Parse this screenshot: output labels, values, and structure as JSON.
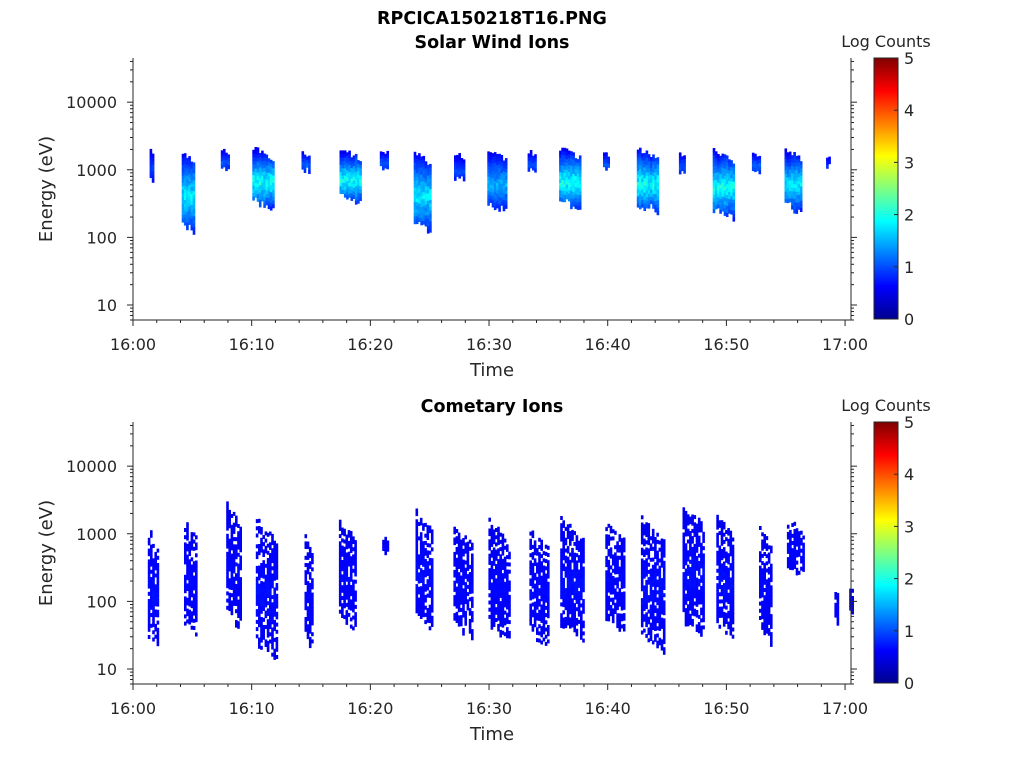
{
  "figure": {
    "filename": "RPCICA150218T16.PNG"
  },
  "chart_data": [
    {
      "type": "heatmap",
      "title": "Solar Wind Ions",
      "xlabel": "Time",
      "ylabel": "Energy (eV)",
      "y_scale": "log",
      "ylim": [
        6,
        45000
      ],
      "x_ticks": [
        "16:00",
        "16:10",
        "16:20",
        "16:30",
        "16:40",
        "16:50",
        "17:00"
      ],
      "xlim_minutes": [
        0,
        60.5
      ],
      "y_ticks": [
        {
          "value": 10,
          "label": "10"
        },
        {
          "value": 100,
          "label": "100"
        },
        {
          "value": 1000,
          "label": "1000"
        },
        {
          "value": 10000,
          "label": "10000"
        }
      ],
      "colorbar": {
        "label": "Log Counts",
        "min": 0,
        "max": 5,
        "ticks": [
          "0",
          "1",
          "2",
          "3",
          "4",
          "5"
        ],
        "colormap": "jet"
      },
      "grid": false,
      "bursts": [
        {
          "t": 1.6,
          "w": 0.4,
          "emin": 700,
          "emax": 2100,
          "peak": 0.6
        },
        {
          "t": 4.7,
          "w": 1.2,
          "emin": 120,
          "emax": 1900,
          "peak": 1.7
        },
        {
          "t": 7.8,
          "w": 0.8,
          "emin": 1100,
          "emax": 2000,
          "peak": 0.7
        },
        {
          "t": 11.0,
          "w": 1.9,
          "emin": 280,
          "emax": 2100,
          "peak": 1.9
        },
        {
          "t": 14.6,
          "w": 0.8,
          "emin": 1050,
          "emax": 1800,
          "peak": 0.8
        },
        {
          "t": 18.3,
          "w": 1.8,
          "emin": 330,
          "emax": 2000,
          "peak": 1.9
        },
        {
          "t": 21.2,
          "w": 0.8,
          "emin": 1100,
          "emax": 1900,
          "peak": 0.7
        },
        {
          "t": 24.4,
          "w": 1.5,
          "emin": 120,
          "emax": 1900,
          "peak": 1.7
        },
        {
          "t": 27.5,
          "w": 0.9,
          "emin": 700,
          "emax": 1800,
          "peak": 0.7
        },
        {
          "t": 30.7,
          "w": 1.7,
          "emin": 250,
          "emax": 2000,
          "peak": 1.3
        },
        {
          "t": 33.6,
          "w": 0.7,
          "emin": 1000,
          "emax": 1900,
          "peak": 0.7
        },
        {
          "t": 36.8,
          "w": 1.8,
          "emin": 280,
          "emax": 2100,
          "peak": 1.9
        },
        {
          "t": 39.9,
          "w": 0.6,
          "emin": 1000,
          "emax": 1900,
          "peak": 0.7
        },
        {
          "t": 43.4,
          "w": 1.9,
          "emin": 250,
          "emax": 2100,
          "peak": 1.9
        },
        {
          "t": 46.3,
          "w": 0.6,
          "emin": 1000,
          "emax": 1700,
          "peak": 0.7
        },
        {
          "t": 49.8,
          "w": 1.9,
          "emin": 210,
          "emax": 2000,
          "peak": 1.9
        },
        {
          "t": 52.5,
          "w": 0.7,
          "emin": 1000,
          "emax": 1800,
          "peak": 0.8
        },
        {
          "t": 55.6,
          "w": 1.4,
          "emin": 240,
          "emax": 2100,
          "peak": 1.7
        },
        {
          "t": 58.6,
          "w": 0.4,
          "emin": 1100,
          "emax": 1500,
          "peak": 0.5
        }
      ]
    },
    {
      "type": "heatmap",
      "title": "Cometary Ions",
      "xlabel": "Time",
      "ylabel": "Energy (eV)",
      "y_scale": "log",
      "ylim": [
        6,
        45000
      ],
      "x_ticks": [
        "16:00",
        "16:10",
        "16:20",
        "16:30",
        "16:40",
        "16:50",
        "17:00"
      ],
      "xlim_minutes": [
        0,
        60.5
      ],
      "y_ticks": [
        {
          "value": 10,
          "label": "10"
        },
        {
          "value": 100,
          "label": "100"
        },
        {
          "value": 1000,
          "label": "1000"
        },
        {
          "value": 10000,
          "label": "10000"
        }
      ],
      "colorbar": {
        "label": "Log Counts",
        "min": 0,
        "max": 5,
        "ticks": [
          "0",
          "1",
          "2",
          "3",
          "4",
          "5"
        ],
        "colormap": "jet"
      },
      "grid": false,
      "bursts": [
        {
          "t": 1.7,
          "w": 0.9,
          "emin": 18,
          "emax": 1200,
          "peak": 0.25
        },
        {
          "t": 4.9,
          "w": 1.2,
          "emin": 30,
          "emax": 1700,
          "peak": 0.2
        },
        {
          "t": 8.5,
          "w": 1.3,
          "emin": 40,
          "emax": 2900,
          "peak": 0.2
        },
        {
          "t": 11.3,
          "w": 1.9,
          "emin": 14,
          "emax": 1700,
          "peak": 0.25
        },
        {
          "t": 14.8,
          "w": 0.7,
          "emin": 20,
          "emax": 900,
          "peak": 0.2
        },
        {
          "t": 18.1,
          "w": 1.5,
          "emin": 40,
          "emax": 1600,
          "peak": 0.2
        },
        {
          "t": 21.3,
          "w": 0.6,
          "emin": 500,
          "emax": 1000,
          "peak": 0.15
        },
        {
          "t": 24.5,
          "w": 1.4,
          "emin": 35,
          "emax": 2200,
          "peak": 0.25
        },
        {
          "t": 27.8,
          "w": 1.6,
          "emin": 30,
          "emax": 1300,
          "peak": 0.2
        },
        {
          "t": 30.9,
          "w": 1.9,
          "emin": 25,
          "emax": 1600,
          "peak": 0.2
        },
        {
          "t": 34.2,
          "w": 1.6,
          "emin": 18,
          "emax": 1300,
          "peak": 0.2
        },
        {
          "t": 37.0,
          "w": 2.0,
          "emin": 28,
          "emax": 1700,
          "peak": 0.25
        },
        {
          "t": 40.6,
          "w": 1.6,
          "emin": 35,
          "emax": 1600,
          "peak": 0.2
        },
        {
          "t": 43.8,
          "w": 2.0,
          "emin": 18,
          "emax": 1700,
          "peak": 0.25
        },
        {
          "t": 47.2,
          "w": 1.8,
          "emin": 30,
          "emax": 2800,
          "peak": 0.25
        },
        {
          "t": 49.9,
          "w": 1.5,
          "emin": 30,
          "emax": 1800,
          "peak": 0.25
        },
        {
          "t": 53.3,
          "w": 1.1,
          "emin": 25,
          "emax": 1200,
          "peak": 0.2
        },
        {
          "t": 55.8,
          "w": 1.4,
          "emin": 250,
          "emax": 1600,
          "peak": 0.2
        },
        {
          "t": 59.3,
          "w": 0.4,
          "emin": 40,
          "emax": 150,
          "peak": 0.15
        },
        {
          "t": 60.5,
          "w": 0.3,
          "emin": 60,
          "emax": 200,
          "peak": 0.15
        }
      ]
    }
  ]
}
